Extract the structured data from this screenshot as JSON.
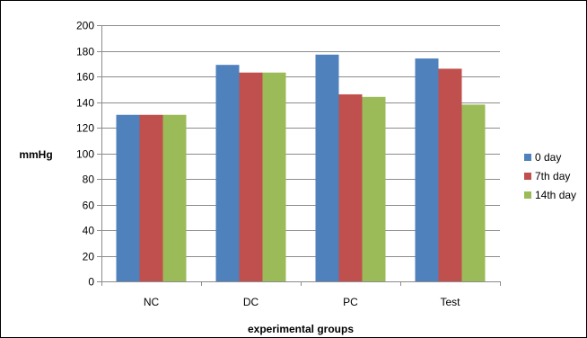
{
  "chart_data": {
    "type": "bar",
    "categories": [
      "NC",
      "DC",
      "PC",
      "Test"
    ],
    "series": [
      {
        "name": "0 day",
        "color": "#4F81BD",
        "values": [
          130,
          169,
          177,
          174
        ]
      },
      {
        "name": "7th day",
        "color": "#C0504D",
        "values": [
          130,
          163,
          146,
          166
        ]
      },
      {
        "name": "14th day",
        "color": "#9BBB59",
        "values": [
          130,
          163,
          144,
          138
        ]
      }
    ],
    "title": "",
    "xlabel": "experimental groups",
    "ylabel": "mmHg",
    "ylim": [
      0,
      200
    ],
    "yticks": [
      0,
      20,
      40,
      60,
      80,
      100,
      120,
      140,
      160,
      180,
      200
    ],
    "grid": true,
    "legend_position": "right"
  }
}
